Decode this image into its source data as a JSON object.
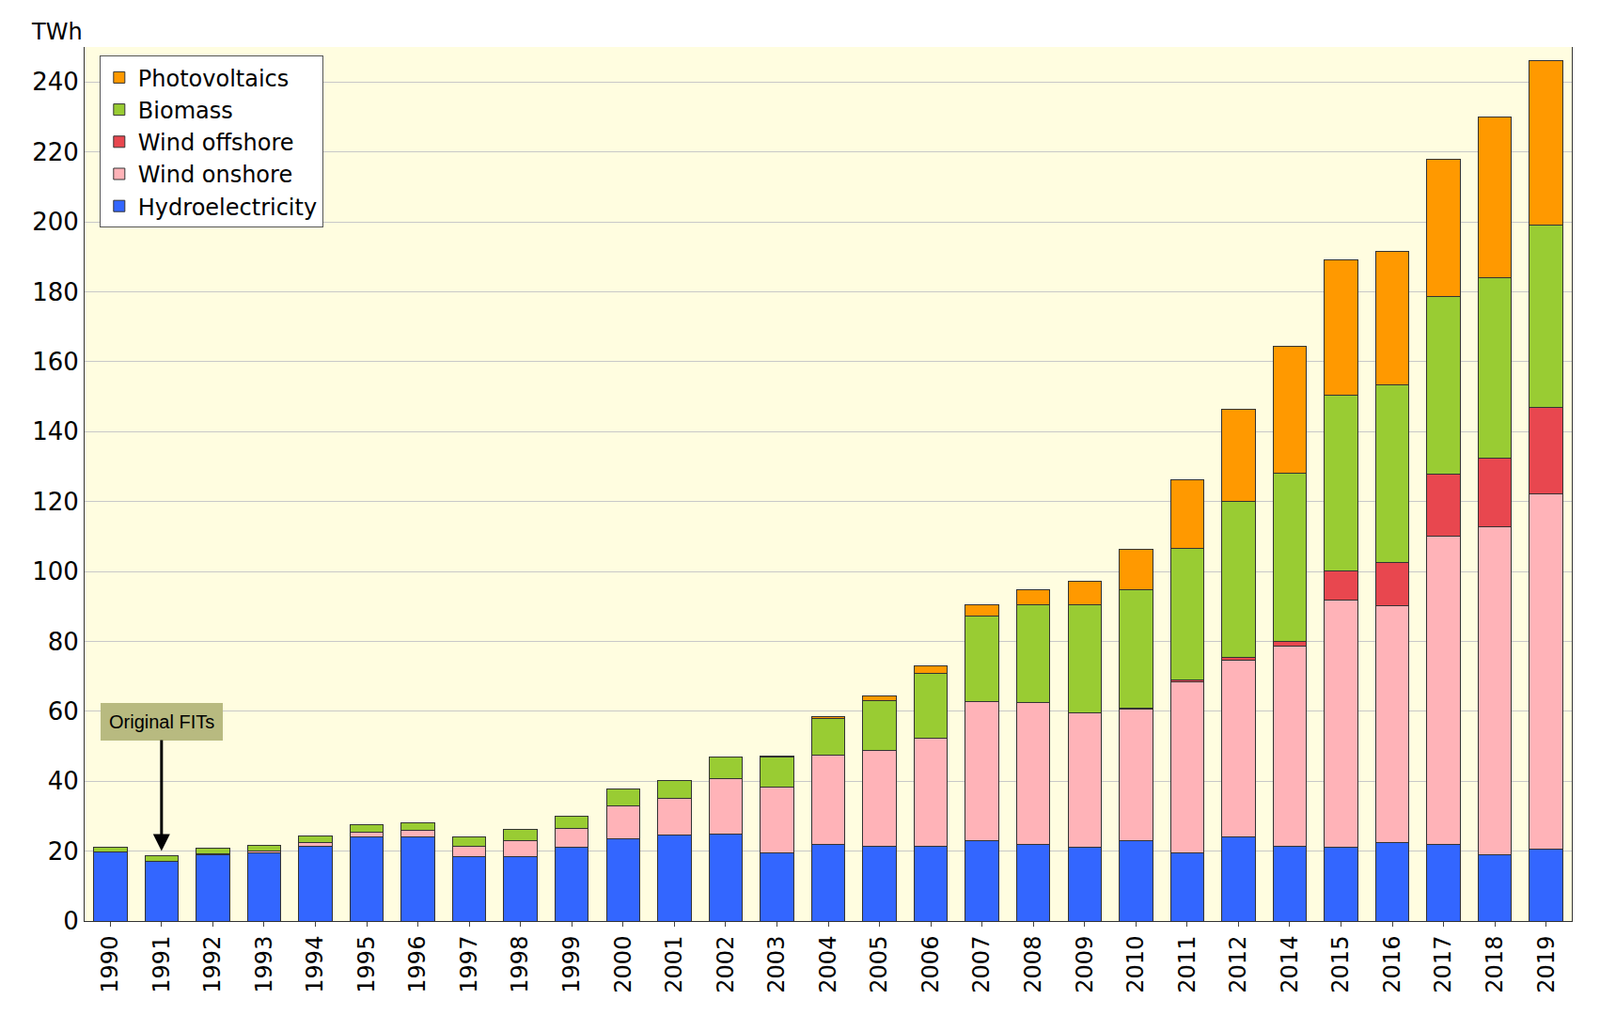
{
  "chart_data": {
    "type": "bar",
    "stacked": true,
    "ylabel": "TWh",
    "categories": [
      "1990",
      "1991",
      "1992",
      "1993",
      "1994",
      "1995",
      "1996",
      "1997",
      "1998",
      "1999",
      "2000",
      "2001",
      "2002",
      "2003",
      "2004",
      "2005",
      "2006",
      "2007",
      "2008",
      "2009",
      "2010",
      "2011",
      "2012",
      "2014",
      "2015",
      "2016",
      "2017",
      "2018",
      "2019"
    ],
    "series": [
      {
        "name": "Hydroelectricity",
        "color": "#3366ff",
        "values": [
          19.7,
          17,
          19,
          19.5,
          21.5,
          24,
          24,
          18.5,
          18.5,
          21,
          23.5,
          24.5,
          25,
          19.5,
          22,
          21.5,
          21.5,
          23,
          22,
          21,
          23,
          19.5,
          24,
          21.5,
          21,
          22.5,
          22,
          19,
          20.5
        ]
      },
      {
        "name": "Wind onshore",
        "color": "#ffb3b8",
        "values": [
          0.1,
          0.2,
          0.3,
          0.6,
          0.9,
          1.5,
          2,
          3,
          4.5,
          5.5,
          9.5,
          10.5,
          15.8,
          18.7,
          25.5,
          27.2,
          30.7,
          39.7,
          40.6,
          38.6,
          37.6,
          48.9,
          50.7,
          57,
          70.9,
          67.7,
          88,
          93.9,
          101.8
        ]
      },
      {
        "name": "Wind offshore",
        "color": "#e8474f",
        "values": [
          0,
          0,
          0,
          0,
          0,
          0,
          0,
          0,
          0,
          0,
          0,
          0,
          0,
          0,
          0,
          0,
          0,
          0,
          0,
          0,
          0.2,
          0.6,
          0.7,
          1.5,
          8.3,
          12.3,
          17.7,
          19.5,
          24.7
        ]
      },
      {
        "name": "Biomass",
        "color": "#99cc33",
        "values": [
          1.4,
          1.5,
          1.5,
          1.6,
          1.9,
          2,
          2.1,
          2.5,
          3.3,
          3.6,
          4.7,
          5.2,
          6,
          8.8,
          10.5,
          14.3,
          18.7,
          24.6,
          27.8,
          30.9,
          33.9,
          37.6,
          44.6,
          48.2,
          50.3,
          50.9,
          50.9,
          51.5,
          52
        ]
      },
      {
        "name": "Photovoltaics",
        "color": "#ff9900",
        "values": [
          0,
          0,
          0,
          0,
          0,
          0,
          0,
          0,
          0,
          0,
          0,
          0,
          0.2,
          0.3,
          0.6,
          1.3,
          2.2,
          3.1,
          4.4,
          6.6,
          11.7,
          19.6,
          26.4,
          36.1,
          38.7,
          38.1,
          39.4,
          46,
          47
        ]
      }
    ],
    "ylim": [
      0,
      250
    ],
    "yticks": [
      0,
      20,
      40,
      60,
      80,
      100,
      120,
      140,
      160,
      180,
      200,
      220,
      240
    ],
    "grid": true,
    "legend": "upper left",
    "annotations": [
      {
        "text": "Original FITs",
        "category": "1991",
        "y": 20,
        "text_y": 57
      }
    ]
  }
}
